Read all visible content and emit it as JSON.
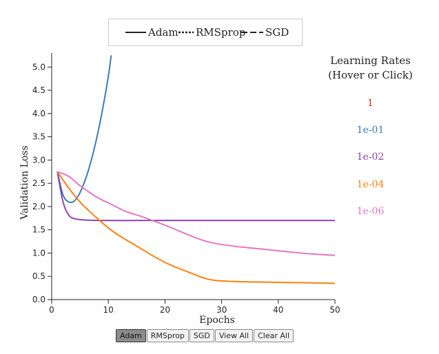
{
  "legend": {
    "items": [
      {
        "label": "Adam",
        "dash": "solid"
      },
      {
        "label": "RMSprop",
        "dash": "dotted"
      },
      {
        "label": "SGD",
        "dash": "dashed"
      }
    ]
  },
  "learning_rates": {
    "title_line1": "Learning Rates",
    "title_line2": "(Hover or Click)",
    "items": [
      {
        "label": "1",
        "color": "#d62728"
      },
      {
        "label": "1e-01",
        "color": "#3a7ab8"
      },
      {
        "label": "1e-02",
        "color": "#8e44ad"
      },
      {
        "label": "1e-04",
        "color": "#ff7f0e"
      },
      {
        "label": "1e-06",
        "color": "#e377c2"
      }
    ]
  },
  "buttons": {
    "adam": "Adam",
    "rmsprop": "RMSprop",
    "sgd": "SGD",
    "view_all": "View All",
    "clear_all": "Clear All",
    "active": "Adam"
  },
  "chart_data": {
    "type": "line",
    "xlabel": "Epochs",
    "ylabel": "Validation Loss",
    "xlim": [
      0,
      50
    ],
    "ylim": [
      0,
      5.3
    ],
    "xticks": [
      0,
      10,
      20,
      30,
      40,
      50
    ],
    "yticks": [
      0.0,
      0.5,
      1.0,
      1.5,
      2.0,
      2.5,
      3.0,
      3.5,
      4.0,
      4.5,
      5.0
    ],
    "grid": false,
    "series": [
      {
        "name": "1e-01",
        "optimizer": "Adam",
        "color": "#3a7ab8",
        "x": [
          1,
          2,
          3,
          4,
          5,
          6,
          7,
          8,
          9,
          10,
          10.5
        ],
        "y": [
          2.75,
          2.25,
          2.1,
          2.12,
          2.3,
          2.6,
          3.0,
          3.5,
          4.1,
          4.8,
          5.25
        ]
      },
      {
        "name": "1e-02",
        "optimizer": "Adam",
        "color": "#8e44ad",
        "x": [
          1,
          2,
          3,
          4,
          6,
          10,
          15,
          20,
          25,
          30,
          35,
          40,
          45,
          50
        ],
        "y": [
          2.75,
          2.1,
          1.82,
          1.74,
          1.71,
          1.7,
          1.7,
          1.7,
          1.7,
          1.7,
          1.7,
          1.7,
          1.7,
          1.7
        ]
      },
      {
        "name": "1e-04",
        "optimizer": "Adam",
        "color": "#ff7f0e",
        "x": [
          1,
          3,
          5,
          8,
          11,
          15,
          20,
          25,
          27,
          29,
          32,
          35,
          40,
          45,
          50
        ],
        "y": [
          2.75,
          2.4,
          2.1,
          1.75,
          1.45,
          1.15,
          0.8,
          0.55,
          0.46,
          0.41,
          0.39,
          0.38,
          0.37,
          0.36,
          0.35
        ]
      },
      {
        "name": "1e-06",
        "optimizer": "Adam",
        "color": "#e377c2",
        "x": [
          1,
          3,
          5,
          8,
          10,
          13,
          16,
          20,
          25,
          28,
          32,
          36,
          40,
          45,
          50
        ],
        "y": [
          2.75,
          2.65,
          2.45,
          2.2,
          2.08,
          1.9,
          1.78,
          1.6,
          1.35,
          1.23,
          1.15,
          1.1,
          1.05,
          0.99,
          0.95
        ]
      }
    ]
  }
}
